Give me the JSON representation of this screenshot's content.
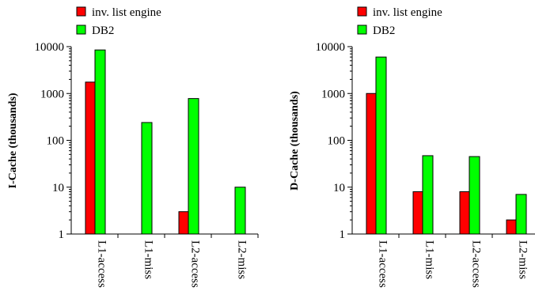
{
  "chart_data": [
    {
      "type": "bar",
      "scale": "log",
      "ylabel": "I-Cache (thousands)",
      "ylim": [
        1,
        10000
      ],
      "yticks": [
        "1",
        "10",
        "100",
        "1000",
        "10000"
      ],
      "categories": [
        "L1-access",
        "L1-miss",
        "L2-access",
        "L2-miss"
      ],
      "legend_position": "top-left",
      "series": [
        {
          "name": "inv. list engine",
          "color": "#ff0000",
          "values": [
            1750,
            1,
            3,
            1
          ]
        },
        {
          "name": "DB2",
          "color": "#00ff00",
          "values": [
            8500,
            240,
            780,
            10
          ]
        }
      ]
    },
    {
      "type": "bar",
      "scale": "log",
      "ylabel": "D-Cache (thousands)",
      "ylim": [
        1,
        10000
      ],
      "yticks": [
        "1",
        "10",
        "100",
        "1000",
        "10000"
      ],
      "categories": [
        "L1-access",
        "L1-miss",
        "L2-access",
        "L2-miss"
      ],
      "legend_position": "top-left",
      "series": [
        {
          "name": "inv. list engine",
          "color": "#ff0000",
          "values": [
            1000,
            8,
            8,
            2
          ]
        },
        {
          "name": "DB2",
          "color": "#00ff00",
          "values": [
            6000,
            47,
            45,
            7
          ]
        }
      ]
    }
  ]
}
